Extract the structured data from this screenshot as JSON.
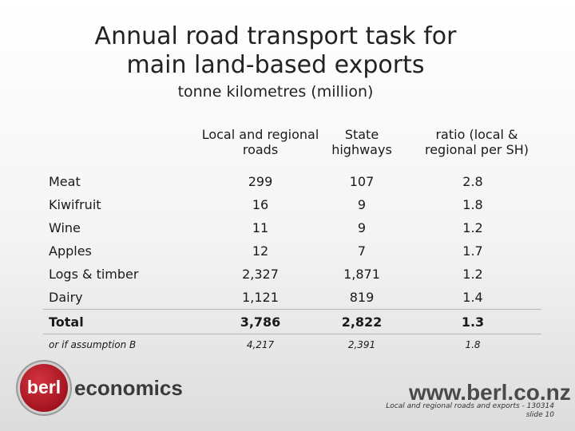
{
  "title_line1": "Annual road transport task for",
  "title_line2": "main land-based exports",
  "subtitle": "tonne kilometres (million)",
  "columns": {
    "col1": "Local and regional roads",
    "col2": "State highways",
    "col3": "ratio (local & regional per SH)"
  },
  "rows": [
    {
      "label": "Meat",
      "local": "299",
      "sh": "107",
      "ratio": "2.8"
    },
    {
      "label": "Kiwifruit",
      "local": "16",
      "sh": "9",
      "ratio": "1.8"
    },
    {
      "label": "Wine",
      "local": "11",
      "sh": "9",
      "ratio": "1.2"
    },
    {
      "label": "Apples",
      "local": "12",
      "sh": "7",
      "ratio": "1.7"
    },
    {
      "label": "Logs & timber",
      "local": "2,327",
      "sh": "1,871",
      "ratio": "1.2"
    },
    {
      "label": "Dairy",
      "local": "1,121",
      "sh": "819",
      "ratio": "1.4"
    }
  ],
  "total": {
    "label": "Total",
    "local": "3,786",
    "sh": "2,822",
    "ratio": "1.3"
  },
  "alt": {
    "label": "or if assumption B",
    "local": "4,217",
    "sh": "2,391",
    "ratio": "1.8"
  },
  "brand": {
    "logo_text": "berl",
    "economics": "economics",
    "url": "www.berl.co.nz",
    "logo_color": "#b01c28"
  },
  "footer": {
    "line1": "Local and regional roads and exports - 130314",
    "line2": "slide 10"
  }
}
